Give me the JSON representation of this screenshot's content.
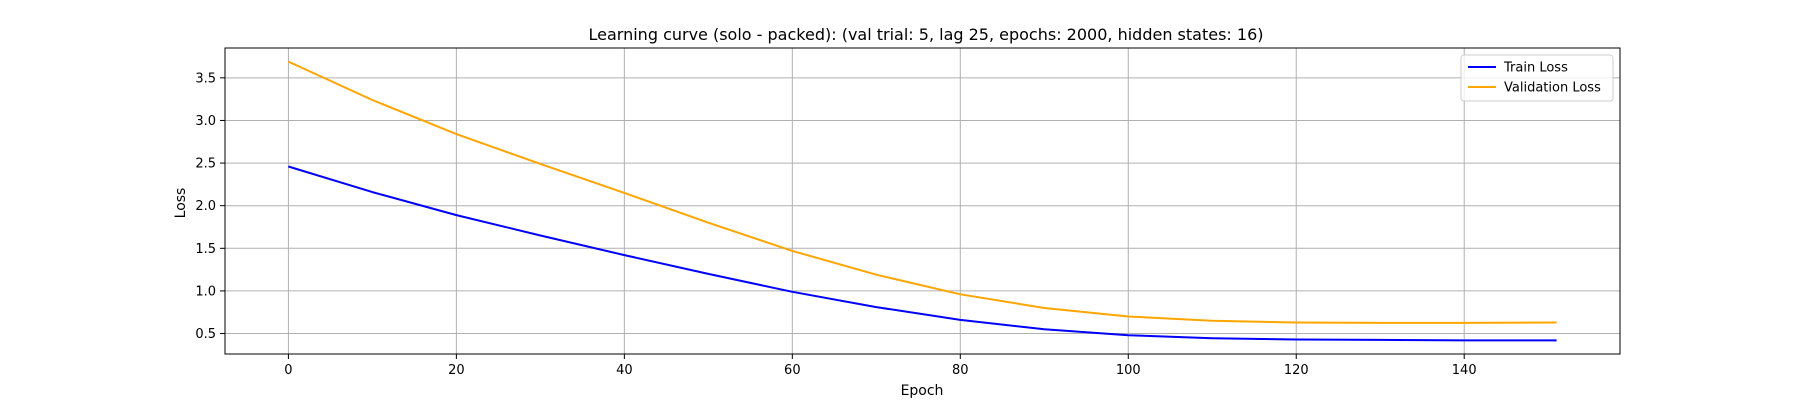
{
  "chart_data": {
    "type": "line",
    "title": "Learning curve (solo - packed): (val trial: 5, lag 25, epochs: 2000, hidden states: 16)",
    "xlabel": "Epoch",
    "ylabel": "Loss",
    "xlim": [
      -7.55,
      158.55
    ],
    "ylim": [
      0.26,
      3.85
    ],
    "xticks": [
      0,
      20,
      40,
      60,
      80,
      100,
      120,
      140
    ],
    "yticks": [
      0.5,
      1.0,
      1.5,
      2.0,
      2.5,
      3.0,
      3.5
    ],
    "xtick_labels": [
      "0",
      "20",
      "40",
      "60",
      "80",
      "100",
      "120",
      "140"
    ],
    "ytick_labels": [
      "0.5",
      "1.0",
      "1.5",
      "2.0",
      "2.5",
      "3.0",
      "3.5"
    ],
    "grid": true,
    "legend_position": "upper right",
    "x": [
      0,
      10,
      20,
      30,
      40,
      50,
      60,
      70,
      80,
      90,
      100,
      110,
      120,
      130,
      140,
      151
    ],
    "series": [
      {
        "name": "Train Loss",
        "color": "#0000ff",
        "values": [
          2.46,
          2.16,
          1.89,
          1.65,
          1.42,
          1.2,
          0.99,
          0.81,
          0.66,
          0.55,
          0.48,
          0.445,
          0.43,
          0.425,
          0.42,
          0.42
        ]
      },
      {
        "name": "Validation Loss",
        "color": "#ffa500",
        "values": [
          3.69,
          3.24,
          2.84,
          2.49,
          2.15,
          1.8,
          1.47,
          1.19,
          0.96,
          0.8,
          0.7,
          0.65,
          0.63,
          0.625,
          0.625,
          0.63
        ]
      }
    ]
  }
}
